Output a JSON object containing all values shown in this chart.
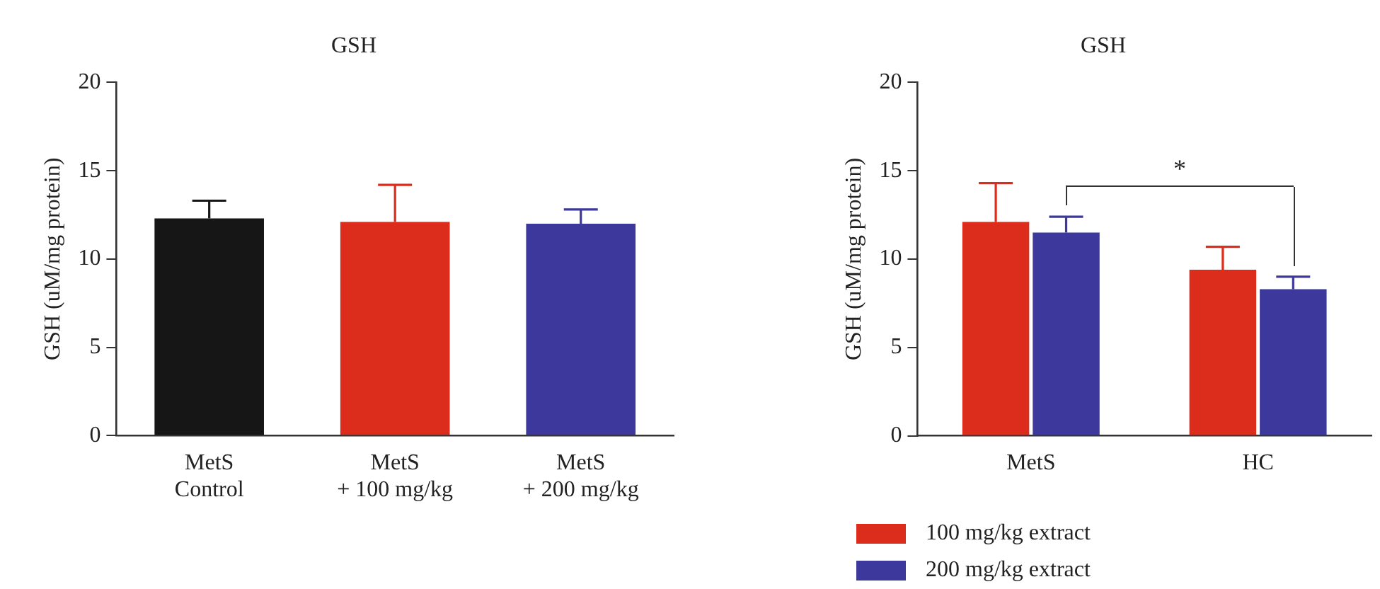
{
  "chart_data": [
    {
      "type": "bar",
      "title": "GSH",
      "ylabel": "GSH (uM/mg protein)",
      "categories": [
        "MetS\nControl",
        "MetS\n+ 100 mg/kg",
        "MetS\n+ 200 mg/kg"
      ],
      "values": [
        12.3,
        12.1,
        12.0
      ],
      "colors": [
        "#161616",
        "#dc2c1c",
        "#3d389b"
      ],
      "errors": [
        [
          12.3,
          13.3
        ],
        [
          12.1,
          14.2
        ],
        [
          12.0,
          12.8
        ]
      ],
      "ylim": [
        0,
        20
      ],
      "yticks": [
        0,
        5,
        10,
        15,
        20
      ],
      "grid": false,
      "legend": false
    },
    {
      "type": "bar",
      "title": "GSH",
      "ylabel": "GSH (uM/mg protein)",
      "categories": [
        "MetS",
        "HC"
      ],
      "series": [
        {
          "name": "100 mg/kg extract",
          "color": "#dc2c1c",
          "values": [
            12.1,
            9.4
          ],
          "errors": [
            [
              12.1,
              14.3
            ],
            [
              9.4,
              10.7
            ]
          ]
        },
        {
          "name": "200 mg/kg extract",
          "color": "#3d389b",
          "values": [
            11.5,
            8.3
          ],
          "errors": [
            [
              11.5,
              12.4
            ],
            [
              8.3,
              9.0
            ]
          ]
        }
      ],
      "annotations": [
        "*"
      ],
      "ylim": [
        0,
        20
      ],
      "yticks": [
        0,
        5,
        10,
        15,
        20
      ],
      "grid": false,
      "legend": "bottom left"
    }
  ]
}
